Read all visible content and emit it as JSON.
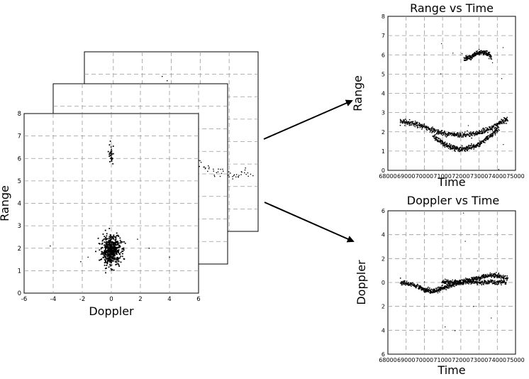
{
  "chart_data": [
    {
      "type": "scatter",
      "panel": "doppler-range",
      "title": "",
      "xlabel": "Doppler",
      "ylabel": "Range",
      "xlim": [
        -6,
        6
      ],
      "ylim": [
        0,
        8
      ],
      "x_ticks": [
        "-6",
        "-4",
        "-2",
        "0",
        "2",
        "4",
        "6"
      ],
      "y_ticks": [
        "0",
        "1",
        "2",
        "3",
        "4",
        "5",
        "6",
        "7",
        "8"
      ],
      "grid": true,
      "stacked_frames_behind": 2,
      "clusters": [
        {
          "doppler_center": 0.0,
          "doppler_spread": 0.55,
          "range_center": 1.9,
          "range_spread": 0.55,
          "points": 520
        },
        {
          "doppler_center": 0.0,
          "doppler_spread": 0.15,
          "range_center": 6.2,
          "range_spread": 0.45,
          "points": 30
        }
      ]
    },
    {
      "type": "scatter",
      "panel": "range-time",
      "title": "Range vs Time",
      "xlabel": "Time",
      "ylabel": "Range",
      "xlim": [
        68000,
        75000
      ],
      "ylim": [
        0,
        8
      ],
      "x_ticks": [
        "68000",
        "69000",
        "70000",
        "71000",
        "72000",
        "73000",
        "74000",
        "75000"
      ],
      "y_ticks": [
        "0",
        "1",
        "2",
        "3",
        "4",
        "5",
        "6",
        "7",
        "8"
      ],
      "grid": true,
      "tracks": [
        {
          "name": "",
          "x": [
            68700,
            69200,
            69700,
            70200,
            70700,
            71200,
            71700,
            72200,
            72700,
            73200,
            73700,
            74200,
            74600
          ],
          "y": [
            2.5,
            2.45,
            2.35,
            2.2,
            2.0,
            1.9,
            1.85,
            1.85,
            1.9,
            2.0,
            2.2,
            2.5,
            2.65
          ]
        },
        {
          "name": "",
          "x": [
            70500,
            70900,
            71300,
            71700,
            72100,
            72500,
            72900,
            73300,
            73700,
            74100
          ],
          "y": [
            1.75,
            1.5,
            1.25,
            1.12,
            1.1,
            1.15,
            1.3,
            1.55,
            1.85,
            2.2
          ]
        },
        {
          "name": "",
          "x": [
            72200,
            72500,
            72800,
            73100,
            73400,
            73700
          ],
          "y": [
            5.8,
            5.85,
            6.05,
            6.15,
            6.1,
            5.85
          ]
        }
      ]
    },
    {
      "type": "scatter",
      "panel": "doppler-time",
      "title": "Doppler vs Time",
      "xlabel": "Time",
      "ylabel": "Doppler",
      "xlim": [
        68000,
        75000
      ],
      "ylim": [
        -6,
        6
      ],
      "x_ticks": [
        "68000",
        "69000",
        "70000",
        "71000",
        "72000",
        "73000",
        "74000",
        "75000"
      ],
      "y_ticks": [
        "6",
        "4",
        "2",
        "0",
        "2",
        "4",
        "6"
      ],
      "grid": true,
      "tracks": [
        {
          "name": "",
          "x": [
            68700,
            69200,
            69700,
            70000,
            70300,
            70700,
            71000,
            71300,
            71700,
            72100,
            72500,
            72900,
            73300,
            73700,
            74100,
            74600
          ],
          "y": [
            0.0,
            -0.1,
            -0.35,
            -0.6,
            -0.7,
            -0.65,
            -0.5,
            -0.3,
            -0.1,
            0.05,
            0.2,
            0.35,
            0.5,
            0.6,
            0.55,
            0.3
          ]
        },
        {
          "name": "",
          "x": [
            71000,
            71500,
            72000,
            72500,
            73000,
            73500,
            74000,
            74500
          ],
          "y": [
            0.0,
            0.0,
            0.05,
            0.05,
            0.0,
            0.0,
            0.0,
            0.0
          ]
        }
      ]
    }
  ]
}
